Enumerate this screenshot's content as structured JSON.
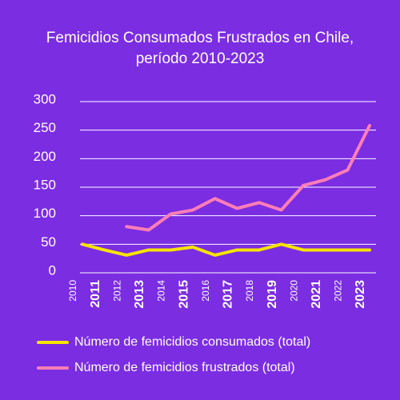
{
  "chart_data": {
    "type": "line",
    "title": "Femicidios Consumados Frustrados en Chile,",
    "subtitle": "período 2010-2023",
    "categories": [
      "2010",
      "2011",
      "2012",
      "2013",
      "2014",
      "2015",
      "2016",
      "2017",
      "2018",
      "2019",
      "2020",
      "2021",
      "2022",
      "2023"
    ],
    "series": [
      {
        "name": "Número de femicidios consumados (total)",
        "color": "#f5e400",
        "values": [
          50,
          40,
          31,
          40,
          40,
          45,
          31,
          40,
          40,
          50,
          40,
          40,
          40,
          40
        ]
      },
      {
        "name": "Número de femicidios frustrados (total)",
        "color": "#ff7eb6",
        "values": [
          null,
          null,
          81,
          75,
          103,
          110,
          130,
          113,
          123,
          110,
          153,
          163,
          180,
          258
        ]
      }
    ],
    "ylim": [
      0,
      300
    ],
    "yticks": [
      0,
      50,
      100,
      150,
      200,
      250,
      300
    ],
    "grid": true
  }
}
